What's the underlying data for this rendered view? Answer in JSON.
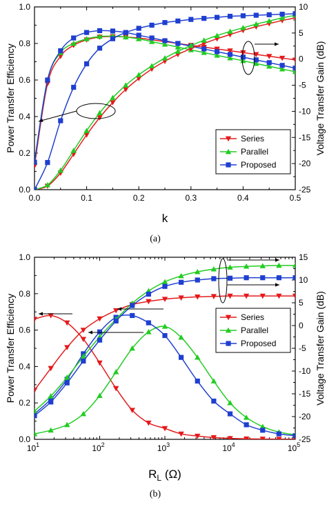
{
  "colors": {
    "Series": "#e41a1c",
    "Parallel": "#22cc22",
    "Proposed": "#1f3fd0"
  },
  "markers": {
    "Series": "triangle-down",
    "Parallel": "triangle-up",
    "Proposed": "square"
  },
  "chart_data": [
    {
      "type": "line",
      "caption": "(a)",
      "xlabel": "k",
      "ylabel": "Power Transfer Efficiency",
      "y2label": "Voltage Transfer Gain (dB)",
      "xlim": [
        0,
        0.5
      ],
      "ylim": [
        0,
        1.0
      ],
      "y2lim": [
        -25,
        10
      ],
      "xscale": "linear",
      "xticks": [
        "0.0",
        "0.1",
        "0.2",
        "0.3",
        "0.4",
        "0.5"
      ],
      "yticks": [
        "0.0",
        "0.2",
        "0.4",
        "0.6",
        "0.8",
        "1.0"
      ],
      "y2ticks": [
        "-25",
        "-20",
        "-15",
        "-10",
        "-5",
        "0",
        "5",
        "10"
      ],
      "legend": {
        "position": "center-right",
        "entries": [
          "Series",
          "Parallel",
          "Proposed"
        ]
      },
      "efficiency_axis": "left",
      "gain_axis": "right",
      "series": [
        {
          "name": "Series",
          "axis": "left",
          "x": [
            0.0,
            0.025,
            0.05,
            0.075,
            0.1,
            0.125,
            0.15,
            0.175,
            0.2,
            0.225,
            0.25,
            0.275,
            0.3,
            0.325,
            0.35,
            0.375,
            0.4,
            0.425,
            0.45,
            0.475,
            0.5
          ],
          "y": [
            0.13,
            0.58,
            0.73,
            0.79,
            0.82,
            0.835,
            0.838,
            0.835,
            0.83,
            0.82,
            0.81,
            0.8,
            0.79,
            0.78,
            0.77,
            0.76,
            0.75,
            0.74,
            0.73,
            0.72,
            0.71
          ]
        },
        {
          "name": "Parallel",
          "axis": "left",
          "x": [
            0.0,
            0.025,
            0.05,
            0.075,
            0.1,
            0.125,
            0.15,
            0.175,
            0.2,
            0.225,
            0.25,
            0.275,
            0.3,
            0.325,
            0.35,
            0.375,
            0.4,
            0.425,
            0.45,
            0.475,
            0.5
          ],
          "y": [
            0.15,
            0.6,
            0.75,
            0.8,
            0.825,
            0.838,
            0.84,
            0.835,
            0.825,
            0.81,
            0.795,
            0.78,
            0.765,
            0.75,
            0.735,
            0.72,
            0.705,
            0.69,
            0.675,
            0.66,
            0.645
          ]
        },
        {
          "name": "Proposed",
          "axis": "left",
          "x": [
            0.0,
            0.025,
            0.05,
            0.075,
            0.1,
            0.125,
            0.15,
            0.175,
            0.2,
            0.225,
            0.25,
            0.275,
            0.3,
            0.325,
            0.35,
            0.375,
            0.4,
            0.425,
            0.45,
            0.475,
            0.5
          ],
          "y": [
            0.15,
            0.6,
            0.76,
            0.83,
            0.86,
            0.87,
            0.868,
            0.86,
            0.845,
            0.83,
            0.815,
            0.8,
            0.785,
            0.77,
            0.755,
            0.74,
            0.725,
            0.71,
            0.695,
            0.68,
            0.665
          ]
        },
        {
          "name": "Series",
          "axis": "right",
          "x": [
            0.0,
            0.025,
            0.05,
            0.075,
            0.1,
            0.125,
            0.15,
            0.175,
            0.2,
            0.225,
            0.25,
            0.275,
            0.3,
            0.325,
            0.35,
            0.375,
            0.4,
            0.425,
            0.45,
            0.475,
            0.5
          ],
          "y": [
            -25,
            -24.3,
            -21.8,
            -18.2,
            -14.5,
            -11.2,
            -8.3,
            -5.8,
            -3.7,
            -1.9,
            -0.4,
            0.9,
            2.0,
            3.0,
            3.9,
            4.7,
            5.5,
            6.2,
            6.8,
            7.4,
            7.9
          ]
        },
        {
          "name": "Parallel",
          "axis": "right",
          "x": [
            0.0,
            0.025,
            0.05,
            0.075,
            0.1,
            0.125,
            0.15,
            0.175,
            0.2,
            0.225,
            0.25,
            0.275,
            0.3,
            0.325,
            0.35,
            0.375,
            0.4,
            0.425,
            0.45,
            0.475,
            0.5
          ],
          "y": [
            -25,
            -24.1,
            -21.3,
            -17.5,
            -13.7,
            -10.3,
            -7.4,
            -5.0,
            -3.0,
            -1.3,
            0.2,
            1.5,
            2.6,
            3.6,
            4.5,
            5.3,
            6.0,
            6.7,
            7.3,
            7.9,
            8.4
          ]
        },
        {
          "name": "Proposed",
          "axis": "right",
          "x": [
            0.0,
            0.025,
            0.05,
            0.075,
            0.1,
            0.125,
            0.15,
            0.175,
            0.2,
            0.225,
            0.25,
            0.275,
            0.3,
            0.325,
            0.35,
            0.375,
            0.4,
            0.425,
            0.45,
            0.475,
            0.5
          ],
          "y": [
            -25,
            -19.8,
            -11.8,
            -5.4,
            -0.9,
            2.1,
            3.9,
            5.1,
            5.9,
            6.5,
            7.0,
            7.3,
            7.6,
            7.8,
            8.0,
            8.2,
            8.3,
            8.4,
            8.5,
            8.6,
            8.7
          ]
        }
      ]
    },
    {
      "type": "line",
      "caption": "(b)",
      "xlabel": "R",
      "xlabel_sub": "L",
      "xlabel_unit": " (Ω)",
      "ylabel": "Power Transfer Efficiency",
      "y2label": "Voltage Transfer Gain (dB)",
      "xlim": [
        10,
        100000
      ],
      "ylim": [
        0,
        1.0
      ],
      "y2lim": [
        -25,
        15
      ],
      "xscale": "log",
      "xticks": [
        {
          "base": "10",
          "exp": "1"
        },
        {
          "base": "10",
          "exp": "2"
        },
        {
          "base": "10",
          "exp": "3"
        },
        {
          "base": "10",
          "exp": "4"
        },
        {
          "base": "10",
          "exp": "5"
        }
      ],
      "yticks": [
        "0.0",
        "0.2",
        "0.4",
        "0.6",
        "0.8",
        "1.0"
      ],
      "y2ticks": [
        "-25",
        "-20",
        "-15",
        "-10",
        "-5",
        "0",
        "5",
        "10",
        "15"
      ],
      "legend": {
        "position": "center-right",
        "entries": [
          "Series",
          "Parallel",
          "Proposed"
        ]
      },
      "series": [
        {
          "name": "Series",
          "axis": "left",
          "x": [
            10,
            17.8,
            31.6,
            56.2,
            100,
            178,
            316,
            562,
            1000,
            1778,
            3162,
            5623,
            10000,
            17783,
            31623,
            56234,
            100000
          ],
          "y": [
            0.66,
            0.68,
            0.64,
            0.55,
            0.42,
            0.28,
            0.16,
            0.09,
            0.06,
            0.03,
            0.018,
            0.01,
            0.005,
            0.003,
            0.002,
            0.001,
            0.001
          ]
        },
        {
          "name": "Parallel",
          "axis": "left",
          "x": [
            10,
            17.8,
            31.6,
            56.2,
            100,
            178,
            316,
            562,
            1000,
            1778,
            3162,
            5623,
            10000,
            17783,
            31623,
            56234,
            100000
          ],
          "y": [
            0.03,
            0.05,
            0.08,
            0.14,
            0.24,
            0.37,
            0.5,
            0.59,
            0.62,
            0.56,
            0.45,
            0.32,
            0.2,
            0.12,
            0.07,
            0.04,
            0.025
          ]
        },
        {
          "name": "Proposed",
          "axis": "left",
          "x": [
            10,
            17.8,
            31.6,
            56.2,
            100,
            178,
            316,
            562,
            1000,
            1778,
            3162,
            5623,
            10000,
            17783,
            31623,
            56234,
            100000
          ],
          "y": [
            0.14,
            0.22,
            0.33,
            0.47,
            0.59,
            0.67,
            0.68,
            0.64,
            0.57,
            0.45,
            0.32,
            0.21,
            0.14,
            0.08,
            0.05,
            0.03,
            0.02
          ]
        },
        {
          "name": "Series",
          "axis": "right",
          "x": [
            10,
            17.8,
            31.6,
            56.2,
            100,
            178,
            316,
            562,
            1000,
            1778,
            3162,
            5623,
            10000,
            17783,
            31623,
            56234,
            100000
          ],
          "y": [
            -14.2,
            -9.4,
            -4.8,
            -1.0,
            1.5,
            3.3,
            4.6,
            5.3,
            5.8,
            6.1,
            6.3,
            6.4,
            6.5,
            6.5,
            6.5,
            6.5,
            6.5
          ]
        },
        {
          "name": "Parallel",
          "axis": "right",
          "x": [
            10,
            17.8,
            31.6,
            56.2,
            100,
            178,
            316,
            562,
            1000,
            1778,
            3162,
            5623,
            10000,
            17783,
            31623,
            56234,
            100000
          ],
          "y": [
            -18.8,
            -15.5,
            -11.4,
            -6.8,
            -2.5,
            1.4,
            4.9,
            7.6,
            9.6,
            10.9,
            11.8,
            12.4,
            12.8,
            13.0,
            13.1,
            13.2,
            13.2
          ]
        },
        {
          "name": "Proposed",
          "axis": "right",
          "x": [
            10,
            17.8,
            31.6,
            56.2,
            100,
            178,
            316,
            562,
            1000,
            1778,
            3162,
            5623,
            10000,
            17783,
            31623,
            56234,
            100000
          ],
          "y": [
            -19.8,
            -16.8,
            -12.6,
            -7.8,
            -3.2,
            1.0,
            4.4,
            6.9,
            8.6,
            9.5,
            10.0,
            10.3,
            10.4,
            10.5,
            10.5,
            10.5,
            10.5
          ]
        }
      ]
    }
  ]
}
